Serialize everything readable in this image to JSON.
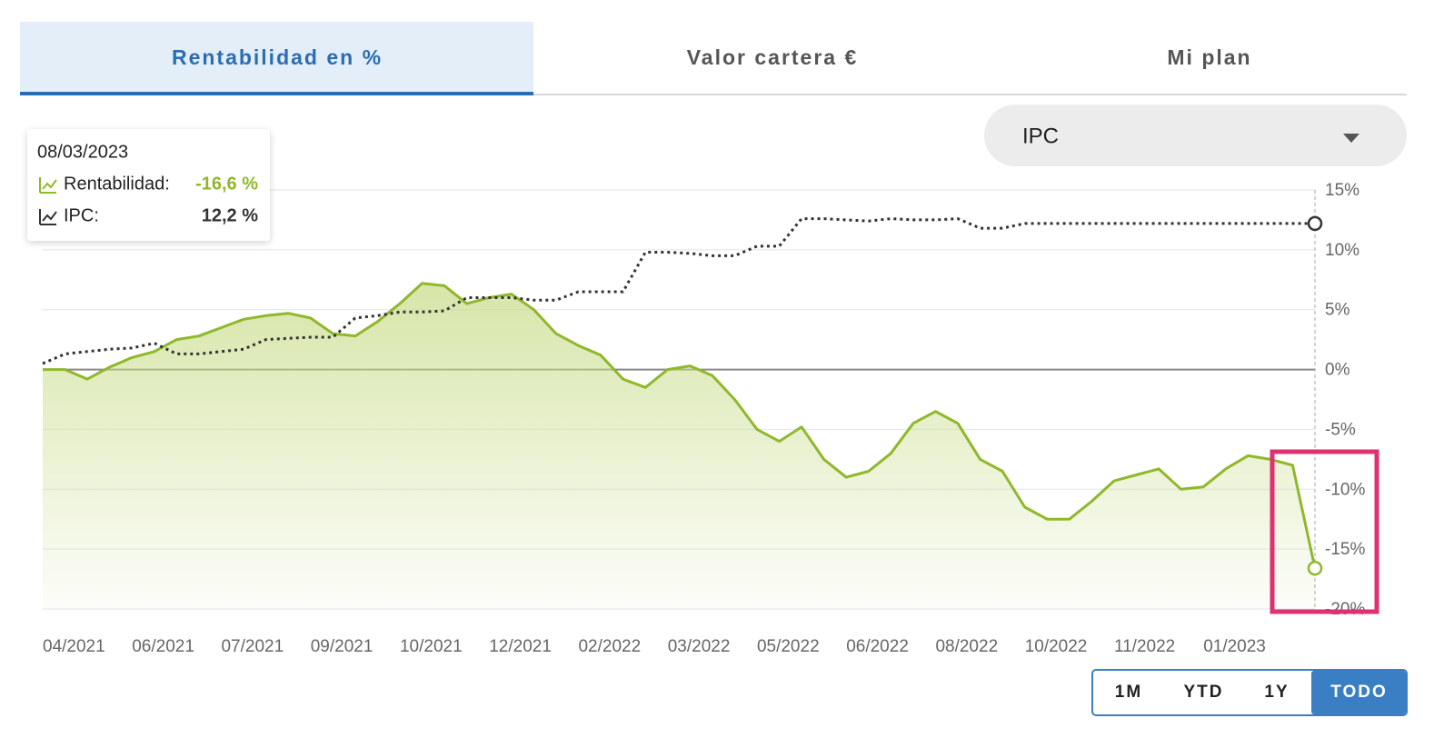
{
  "tabs": [
    "Rentabilidad en %",
    "Valor cartera €",
    "Mi plan"
  ],
  "active_tab": 0,
  "dropdown": "IPC",
  "tooltip": {
    "date": "08/03/2023",
    "rows": [
      {
        "label": "Rentabilidad:",
        "value": "-16,6 %",
        "color": "#8fb82a"
      },
      {
        "label": "IPC:",
        "value": "12,2 %",
        "color": "#333333"
      }
    ]
  },
  "range_buttons": [
    "1M",
    "YTD",
    "1Y",
    "TODO"
  ],
  "active_range": 3,
  "chart_data": {
    "type": "line",
    "categories": [
      "04/2021",
      null,
      null,
      null,
      "06/2021",
      null,
      null,
      null,
      "07/2021",
      null,
      null,
      null,
      "09/2021",
      null,
      null,
      null,
      "10/2021",
      null,
      null,
      null,
      "12/2021",
      null,
      null,
      null,
      "02/2022",
      null,
      null,
      null,
      "03/2022",
      null,
      null,
      null,
      "05/2022",
      null,
      null,
      null,
      "06/2022",
      null,
      null,
      null,
      "08/2022",
      null,
      null,
      null,
      "10/2022",
      null,
      null,
      null,
      "11/2022",
      null,
      null,
      null,
      "01/2023",
      null,
      null,
      null,
      null,
      null
    ],
    "series": [
      {
        "color": "#8fb82a",
        "area": true,
        "values": [
          0,
          0,
          -0.8,
          0.2,
          1.0,
          1.5,
          2.5,
          2.8,
          3.5,
          4.2,
          4.5,
          4.7,
          4.3,
          3.0,
          2.8,
          4.0,
          5.5,
          7.2,
          7.0,
          5.5,
          6.0,
          6.3,
          5.0,
          3.0,
          2.0,
          1.2,
          -0.8,
          -1.5,
          0,
          0.3,
          -0.5,
          -2.5,
          -5.0,
          -6.0,
          -4.8,
          -7.5,
          -9.0,
          -8.5,
          -7.0,
          -4.5,
          -3.5,
          -4.5,
          -7.5,
          -8.5,
          -11.5,
          -12.5,
          -12.5,
          -11.0,
          -9.3,
          -8.8,
          -8.3,
          -10.0,
          -9.8,
          -8.3,
          -7.2,
          -7.5,
          -8.0,
          -16.6
        ]
      },
      {
        "color": "#333333",
        "dashed": true,
        "values": [
          0.5,
          1.3,
          1.5,
          1.7,
          1.8,
          2.2,
          1.3,
          1.3,
          1.5,
          1.7,
          2.5,
          2.6,
          2.7,
          2.7,
          4.3,
          4.5,
          4.8,
          4.8,
          4.9,
          6.0,
          6.0,
          6.0,
          5.8,
          5.8,
          6.5,
          6.5,
          6.5,
          9.8,
          9.8,
          9.7,
          9.5,
          9.5,
          10.3,
          10.3,
          12.6,
          12.6,
          12.5,
          12.4,
          12.6,
          12.5,
          12.5,
          12.6,
          11.8,
          11.8,
          12.2,
          12.2,
          12.2,
          12.2,
          12.2,
          12.2,
          12.2,
          12.2,
          12.2,
          12.2,
          12.2,
          12.2,
          12.2,
          12.2
        ]
      }
    ],
    "ylim": [
      -20,
      15
    ],
    "yticks": [
      {
        "value": -20,
        "label": "-20%"
      },
      {
        "value": -15,
        "label": "-15%"
      },
      {
        "value": -10,
        "label": "-10%"
      },
      {
        "value": -5,
        "label": "-5%"
      },
      {
        "value": 0,
        "label": "0%"
      },
      {
        "value": 5,
        "label": "5%"
      },
      {
        "value": 10,
        "label": "10%"
      },
      {
        "value": 15,
        "label": "15%"
      }
    ],
    "grid": true
  }
}
